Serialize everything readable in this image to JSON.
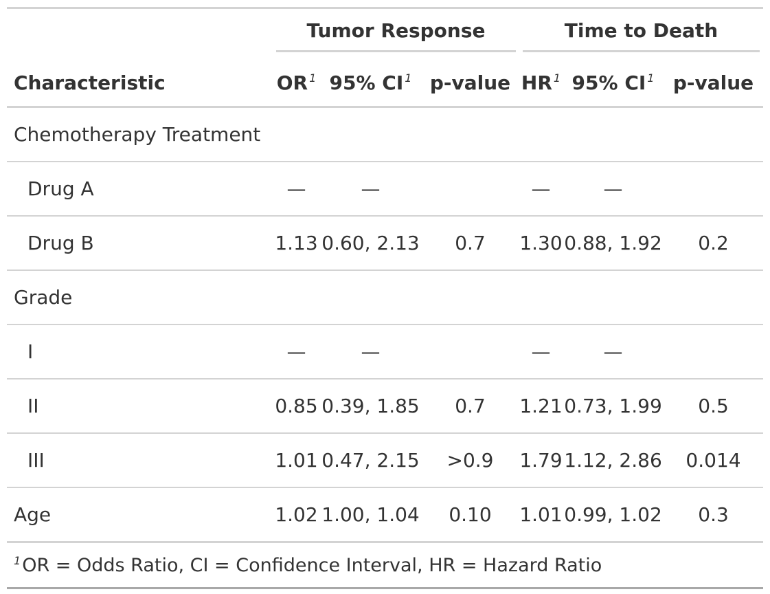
{
  "table": {
    "spanners": [
      {
        "label": "Tumor Response"
      },
      {
        "label": "Time to Death"
      }
    ],
    "columns": [
      {
        "label": "Characteristic",
        "footnote_mark": ""
      },
      {
        "label": "OR",
        "footnote_mark": "1"
      },
      {
        "label": "95% CI",
        "footnote_mark": "1"
      },
      {
        "label": "p-value",
        "footnote_mark": ""
      },
      {
        "label": "HR",
        "footnote_mark": "1"
      },
      {
        "label": "95% CI",
        "footnote_mark": "1"
      },
      {
        "label": "p-value",
        "footnote_mark": ""
      }
    ],
    "rows": [
      {
        "label": "Chemotherapy Treatment",
        "indent": false,
        "cells": [
          "",
          "",
          "",
          "",
          "",
          ""
        ]
      },
      {
        "label": "Drug A",
        "indent": true,
        "cells": [
          "—",
          "—",
          "",
          "—",
          "—",
          ""
        ]
      },
      {
        "label": "Drug B",
        "indent": true,
        "cells": [
          "1.13",
          "0.60, 2.13",
          "0.7",
          "1.30",
          "0.88, 1.92",
          "0.2"
        ]
      },
      {
        "label": "Grade",
        "indent": false,
        "cells": [
          "",
          "",
          "",
          "",
          "",
          ""
        ]
      },
      {
        "label": "I",
        "indent": true,
        "cells": [
          "—",
          "—",
          "",
          "—",
          "—",
          ""
        ]
      },
      {
        "label": "II",
        "indent": true,
        "cells": [
          "0.85",
          "0.39, 1.85",
          "0.7",
          "1.21",
          "0.73, 1.99",
          "0.5"
        ]
      },
      {
        "label": "III",
        "indent": true,
        "cells": [
          "1.01",
          "0.47, 2.15",
          ">0.9",
          "1.79",
          "1.12, 2.86",
          "0.014"
        ]
      },
      {
        "label": "Age",
        "indent": false,
        "cells": [
          "1.02",
          "1.00, 1.04",
          "0.10",
          "1.01",
          "0.99, 1.02",
          "0.3"
        ]
      }
    ],
    "footnote": {
      "mark": "1",
      "text": "OR = Odds Ratio, CI = Confidence Interval, HR = Hazard Ratio"
    }
  }
}
